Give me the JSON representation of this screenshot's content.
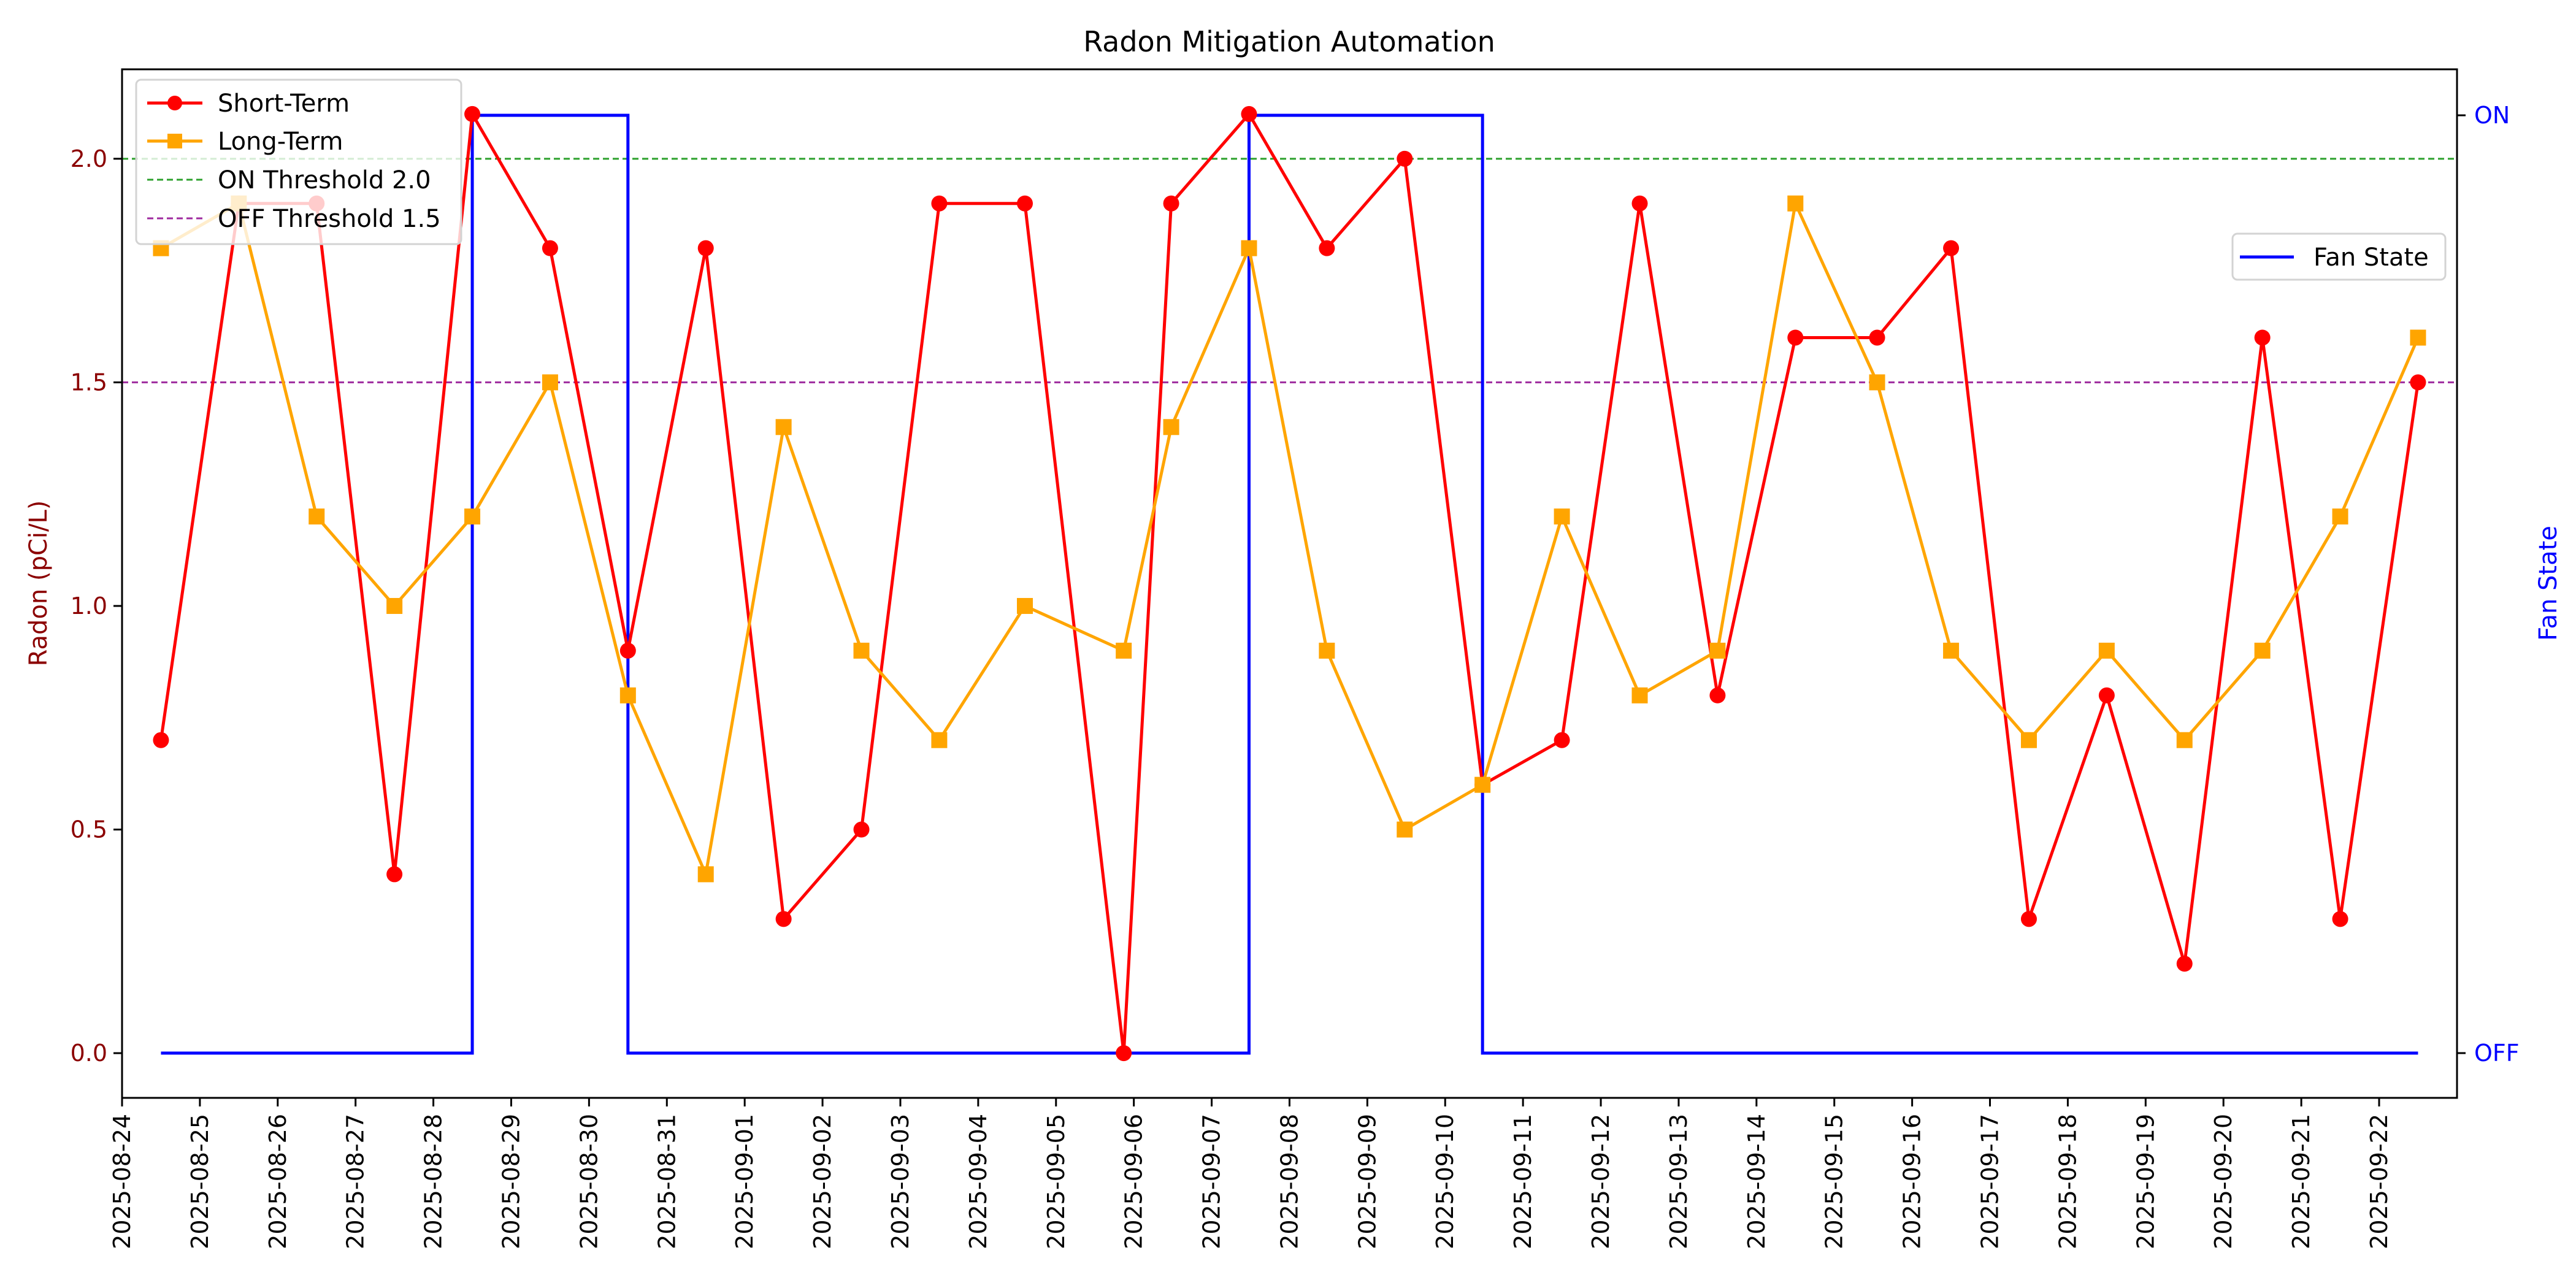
{
  "chart_data": {
    "type": "line",
    "title": "Radon Mitigation Automation",
    "xlabel": "",
    "ylabel": "Radon (pCi/L)",
    "y2label": "Fan State",
    "ylim": [
      -0.1,
      2.2
    ],
    "yticks": [
      "0.0",
      "0.5",
      "1.0",
      "1.5",
      "2.0"
    ],
    "y2ticks": [
      "OFF",
      "ON"
    ],
    "xticks": [
      "2025-08-24",
      "2025-08-25",
      "2025-08-26",
      "2025-08-27",
      "2025-08-28",
      "2025-08-29",
      "2025-08-30",
      "2025-08-31",
      "2025-09-01",
      "2025-09-02",
      "2025-09-03",
      "2025-09-04",
      "2025-09-05",
      "2025-09-06",
      "2025-09-07",
      "2025-09-08",
      "2025-09-09",
      "2025-09-10",
      "2025-09-11",
      "2025-09-12",
      "2025-09-13",
      "2025-09-14",
      "2025-09-15",
      "2025-09-16",
      "2025-09-17",
      "2025-09-18",
      "2025-09-19",
      "2025-09-20",
      "2025-09-21",
      "2025-09-22"
    ],
    "x_day_offsets": [
      0.5,
      1.5,
      2.5,
      3.5,
      4.5,
      5.5,
      6.5,
      7.5,
      8.5,
      9.5,
      10.5,
      11.6,
      12.87,
      13.48,
      14.48,
      15.48,
      16.48,
      17.48,
      18.5,
      19.5,
      20.5,
      21.5,
      22.55,
      23.5,
      24.5,
      25.5,
      26.5,
      27.5,
      28.5,
      29.5
    ],
    "series": [
      {
        "name": "Short-Term",
        "color": "#ff0000",
        "marker": "circle",
        "values": [
          0.7,
          1.9,
          1.9,
          0.4,
          2.1,
          1.8,
          0.9,
          1.8,
          0.3,
          0.5,
          1.9,
          1.9,
          0.0,
          1.9,
          2.1,
          1.8,
          2.0,
          0.6,
          0.7,
          1.9,
          0.8,
          1.6,
          1.6,
          1.8,
          0.3,
          0.8,
          0.2,
          1.6,
          0.3,
          1.5
        ]
      },
      {
        "name": "Long-Term",
        "color": "#ffa500",
        "marker": "square",
        "values": [
          1.8,
          1.9,
          1.2,
          1.0,
          1.2,
          1.5,
          0.8,
          0.4,
          1.4,
          0.9,
          0.7,
          1.0,
          0.9,
          1.4,
          1.8,
          0.9,
          0.5,
          0.6,
          1.2,
          0.8,
          0.9,
          1.9,
          1.5,
          0.9,
          0.7,
          0.9,
          0.7,
          0.9,
          1.2,
          1.6
        ]
      },
      {
        "name": "Fan State",
        "color": "#0000ff",
        "axis": "right",
        "step": true,
        "values": [
          "OFF",
          "OFF",
          "OFF",
          "OFF",
          "ON",
          "ON",
          "OFF",
          "OFF",
          "OFF",
          "OFF",
          "OFF",
          "OFF",
          "OFF",
          "OFF",
          "ON",
          "ON",
          "ON",
          "OFF",
          "OFF",
          "OFF",
          "OFF",
          "OFF",
          "OFF",
          "OFF",
          "OFF",
          "OFF",
          "OFF",
          "OFF",
          "OFF",
          "OFF"
        ]
      }
    ],
    "thresholds": [
      {
        "name": "ON Threshold 2.0",
        "value": 2.0,
        "color": "#2ca02c",
        "style": "dashed"
      },
      {
        "name": "OFF Threshold 1.5",
        "value": 1.5,
        "color": "#9e2a9e",
        "style": "dashed"
      }
    ],
    "legend": {
      "left": [
        "Short-Term",
        "Long-Term",
        "ON Threshold 2.0",
        "OFF Threshold 1.5"
      ],
      "right": [
        "Fan State"
      ],
      "left_position": "upper left",
      "right_position": "upper right"
    },
    "grid": false
  },
  "colors": {
    "left_axis": "#8b0000",
    "right_axis": "#0000ff"
  }
}
